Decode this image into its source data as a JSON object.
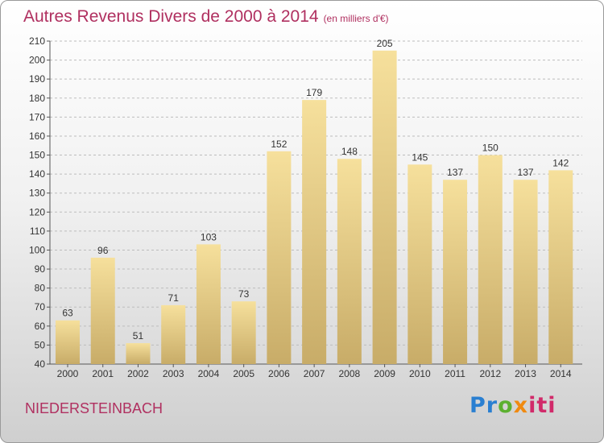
{
  "header": {
    "title": "Autres Revenus Divers de 2000 à 2014",
    "unit": "(en milliers d'€)"
  },
  "footer": {
    "location": "NIEDERSTEINBACH",
    "brand": "Proxiti"
  },
  "colors": {
    "title": "#b03060",
    "bar_light": "#f6e09c",
    "bar_dark": "#c8ac68",
    "grid": "#bdbdbd"
  },
  "chart_data": {
    "type": "bar",
    "categories": [
      "2000",
      "2001",
      "2002",
      "2003",
      "2004",
      "2005",
      "2006",
      "2007",
      "2008",
      "2009",
      "2010",
      "2011",
      "2012",
      "2013",
      "2014"
    ],
    "values": [
      63,
      96,
      51,
      71,
      103,
      73,
      152,
      179,
      148,
      205,
      145,
      137,
      150,
      137,
      142
    ],
    "ylim": [
      40,
      210
    ],
    "yticks": [
      40,
      50,
      60,
      70,
      80,
      90,
      100,
      110,
      120,
      130,
      140,
      150,
      160,
      170,
      180,
      190,
      200,
      210
    ],
    "grid": true,
    "data_labels": true
  }
}
